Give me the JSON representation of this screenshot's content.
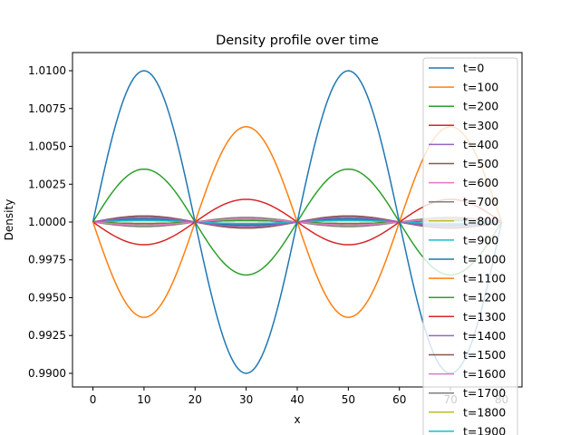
{
  "chart_data": {
    "type": "line",
    "title": "Density profile over time",
    "xlabel": "x",
    "ylabel": "Density",
    "xlim": [
      -4,
      84
    ],
    "ylim": [
      0.9891,
      1.0112
    ],
    "xticks": [
      0,
      10,
      20,
      30,
      40,
      50,
      60,
      70,
      80
    ],
    "yticks": [
      0.99,
      0.9925,
      0.995,
      0.9975,
      1.0,
      1.0025,
      1.005,
      1.0075,
      1.01
    ],
    "ytick_labels": [
      "0.9900",
      "0.9925",
      "0.9950",
      "0.9975",
      "1.0000",
      "1.0025",
      "1.0050",
      "1.0075",
      "1.0100"
    ],
    "legend_position": "upper-right",
    "grid": false,
    "series": [
      {
        "name": "t=0",
        "amplitude": 0.01,
        "color": "#1f77b4"
      },
      {
        "name": "t=100",
        "amplitude": -0.0063,
        "color": "#ff7f0e"
      },
      {
        "name": "t=200",
        "amplitude": 0.0035,
        "color": "#2ca02c"
      },
      {
        "name": "t=300",
        "amplitude": -0.0015,
        "color": "#d62728"
      },
      {
        "name": "t=400",
        "amplitude": 0.0003,
        "color": "#9467bd"
      },
      {
        "name": "t=500",
        "amplitude": 0.0004,
        "color": "#8c564b"
      },
      {
        "name": "t=600",
        "amplitude": -0.0002,
        "color": "#e377c2"
      },
      {
        "name": "t=700",
        "amplitude": -0.0003,
        "color": "#7f7f7f"
      },
      {
        "name": "t=800",
        "amplitude": -0.0003,
        "color": "#bcbd22"
      },
      {
        "name": "t=900",
        "amplitude": 0.0001,
        "color": "#17becf"
      },
      {
        "name": "t=1000",
        "amplitude": 0.0002,
        "color": "#1f77b4"
      },
      {
        "name": "t=1100",
        "amplitude": 0.0001,
        "color": "#ff7f0e"
      },
      {
        "name": "t=1200",
        "amplitude": -0.0001,
        "color": "#2ca02c"
      },
      {
        "name": "t=1300",
        "amplitude": -0.0001,
        "color": "#d62728"
      },
      {
        "name": "t=1400",
        "amplitude": 0.0002,
        "color": "#9467bd"
      },
      {
        "name": "t=1500",
        "amplitude": 0.0002,
        "color": "#8c564b"
      },
      {
        "name": "t=1600",
        "amplitude": 0.0003,
        "color": "#e377c2"
      },
      {
        "name": "t=1700",
        "amplitude": 0.0004,
        "color": "#7f7f7f"
      },
      {
        "name": "t=1800",
        "amplitude": -0.0001,
        "color": "#bcbd22"
      },
      {
        "name": "t=1900",
        "amplitude": 0.0001,
        "color": "#17becf"
      }
    ],
    "x_range": [
      0,
      80
    ],
    "wavelength": 40
  }
}
